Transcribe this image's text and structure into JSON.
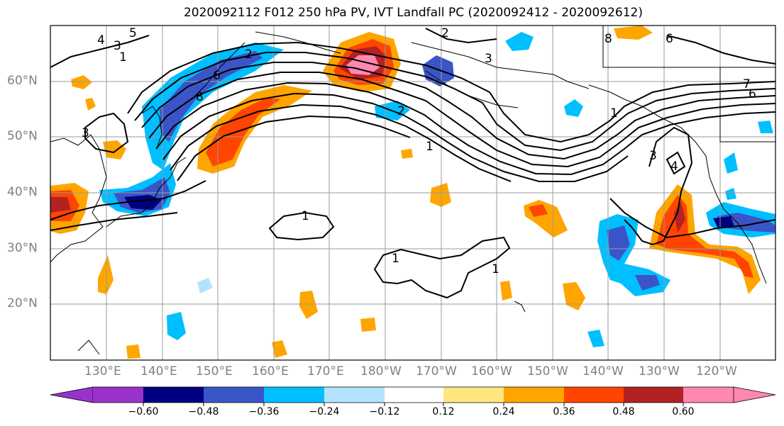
{
  "title": "2020092112 F012 250 hPa PV, IVT Landfall PC (2020092412 - 2020092612)",
  "lat_labels": [
    "60°N",
    "50°N",
    "40°N",
    "30°N",
    "20°N"
  ],
  "lon_labels": [
    "130°E",
    "140°E",
    "150°E",
    "160°E",
    "170°E",
    "180°W",
    "170°W",
    "160°W",
    "150°W",
    "140°W",
    "130°W",
    "120°W"
  ],
  "colorbar": {
    "ticks": [
      "−0.60",
      "−0.48",
      "−0.36",
      "−0.24",
      "−0.12",
      "0.12",
      "0.24",
      "0.36",
      "0.48",
      "0.60"
    ],
    "colors": [
      "#9932cc",
      "#000080",
      "#3a55c8",
      "#00bfff",
      "#b3e3ff",
      "#ffffff",
      "#ffe680",
      "#ffa500",
      "#ff4500",
      "#b22222",
      "#ff88b0"
    ]
  },
  "contour_labels": [
    "4",
    "5",
    "3",
    "1",
    "2",
    "8",
    "6",
    "2",
    "3",
    "3",
    "2",
    "1",
    "3",
    "4",
    "1",
    "1",
    "1",
    "1",
    "8",
    "6",
    "6",
    "7"
  ]
}
